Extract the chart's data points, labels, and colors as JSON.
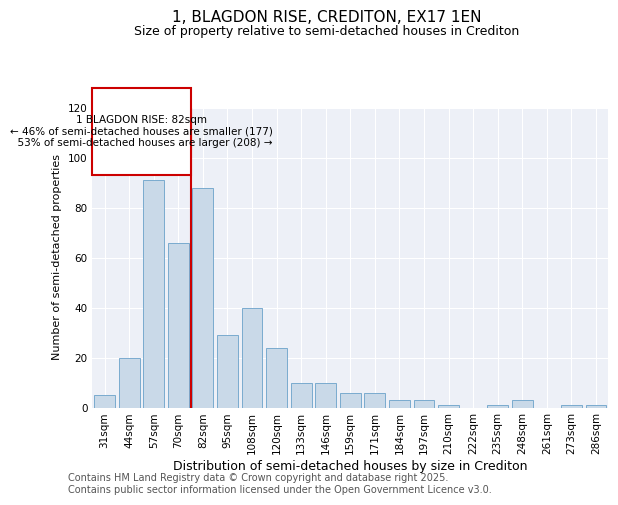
{
  "title": "1, BLAGDON RISE, CREDITON, EX17 1EN",
  "subtitle": "Size of property relative to semi-detached houses in Crediton",
  "xlabel": "Distribution of semi-detached houses by size in Crediton",
  "ylabel": "Number of semi-detached properties",
  "categories": [
    "31sqm",
    "44sqm",
    "57sqm",
    "70sqm",
    "82sqm",
    "95sqm",
    "108sqm",
    "120sqm",
    "133sqm",
    "146sqm",
    "159sqm",
    "171sqm",
    "184sqm",
    "197sqm",
    "210sqm",
    "222sqm",
    "235sqm",
    "248sqm",
    "261sqm",
    "273sqm",
    "286sqm"
  ],
  "values": [
    5,
    20,
    91,
    66,
    88,
    29,
    40,
    24,
    10,
    10,
    6,
    6,
    3,
    3,
    1,
    0,
    1,
    3,
    0,
    1,
    1
  ],
  "bar_color": "#c9d9e8",
  "bar_edge_color": "#7aabcf",
  "marker_index": 4,
  "marker_color": "#cc0000",
  "property_label": "1 BLAGDON RISE: 82sqm",
  "smaller_pct": "46%",
  "smaller_count": 177,
  "larger_pct": "53%",
  "larger_count": 208,
  "annotation_box_color": "#cc0000",
  "ylim": [
    0,
    120
  ],
  "yticks": [
    0,
    20,
    40,
    60,
    80,
    100,
    120
  ],
  "background_color": "#edf0f7",
  "footer": "Contains HM Land Registry data © Crown copyright and database right 2025.\nContains public sector information licensed under the Open Government Licence v3.0.",
  "title_fontsize": 11,
  "subtitle_fontsize": 9,
  "xlabel_fontsize": 9,
  "ylabel_fontsize": 8,
  "tick_fontsize": 7.5,
  "footer_fontsize": 7,
  "ann_fontsize": 7.5
}
